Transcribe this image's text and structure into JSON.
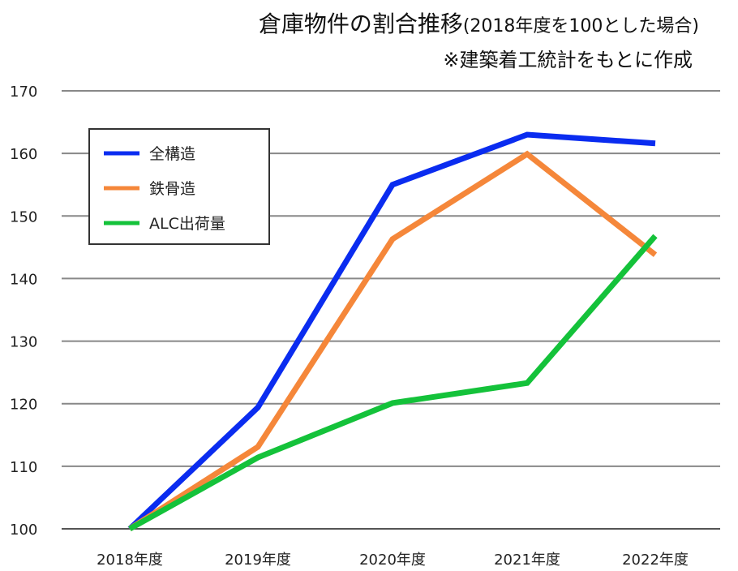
{
  "chart_data": {
    "type": "line",
    "title": "倉庫物件の割合推移",
    "title_suffix": "(2018年度を100とした場合)",
    "subtitle": "※建築着工統計をもとに作成",
    "categories": [
      "2018年度",
      "2019年度",
      "2020年度",
      "2021年度",
      "2022年度"
    ],
    "ylim": [
      100,
      170
    ],
    "yticks": [
      100,
      110,
      120,
      130,
      140,
      150,
      160,
      170
    ],
    "grid": true,
    "legend_placement": "top-left",
    "series": [
      {
        "name": "全構造",
        "color": "#0a2cf0",
        "values": [
          100,
          119.4,
          155.0,
          163.0,
          161.6
        ]
      },
      {
        "name": "鉄骨造",
        "color": "#f5873a",
        "values": [
          100,
          113.1,
          146.3,
          159.9,
          143.8
        ]
      },
      {
        "name": "ALC出荷量",
        "color": "#14c23a",
        "values": [
          100,
          111.4,
          120.1,
          123.3,
          146.8
        ]
      }
    ]
  }
}
